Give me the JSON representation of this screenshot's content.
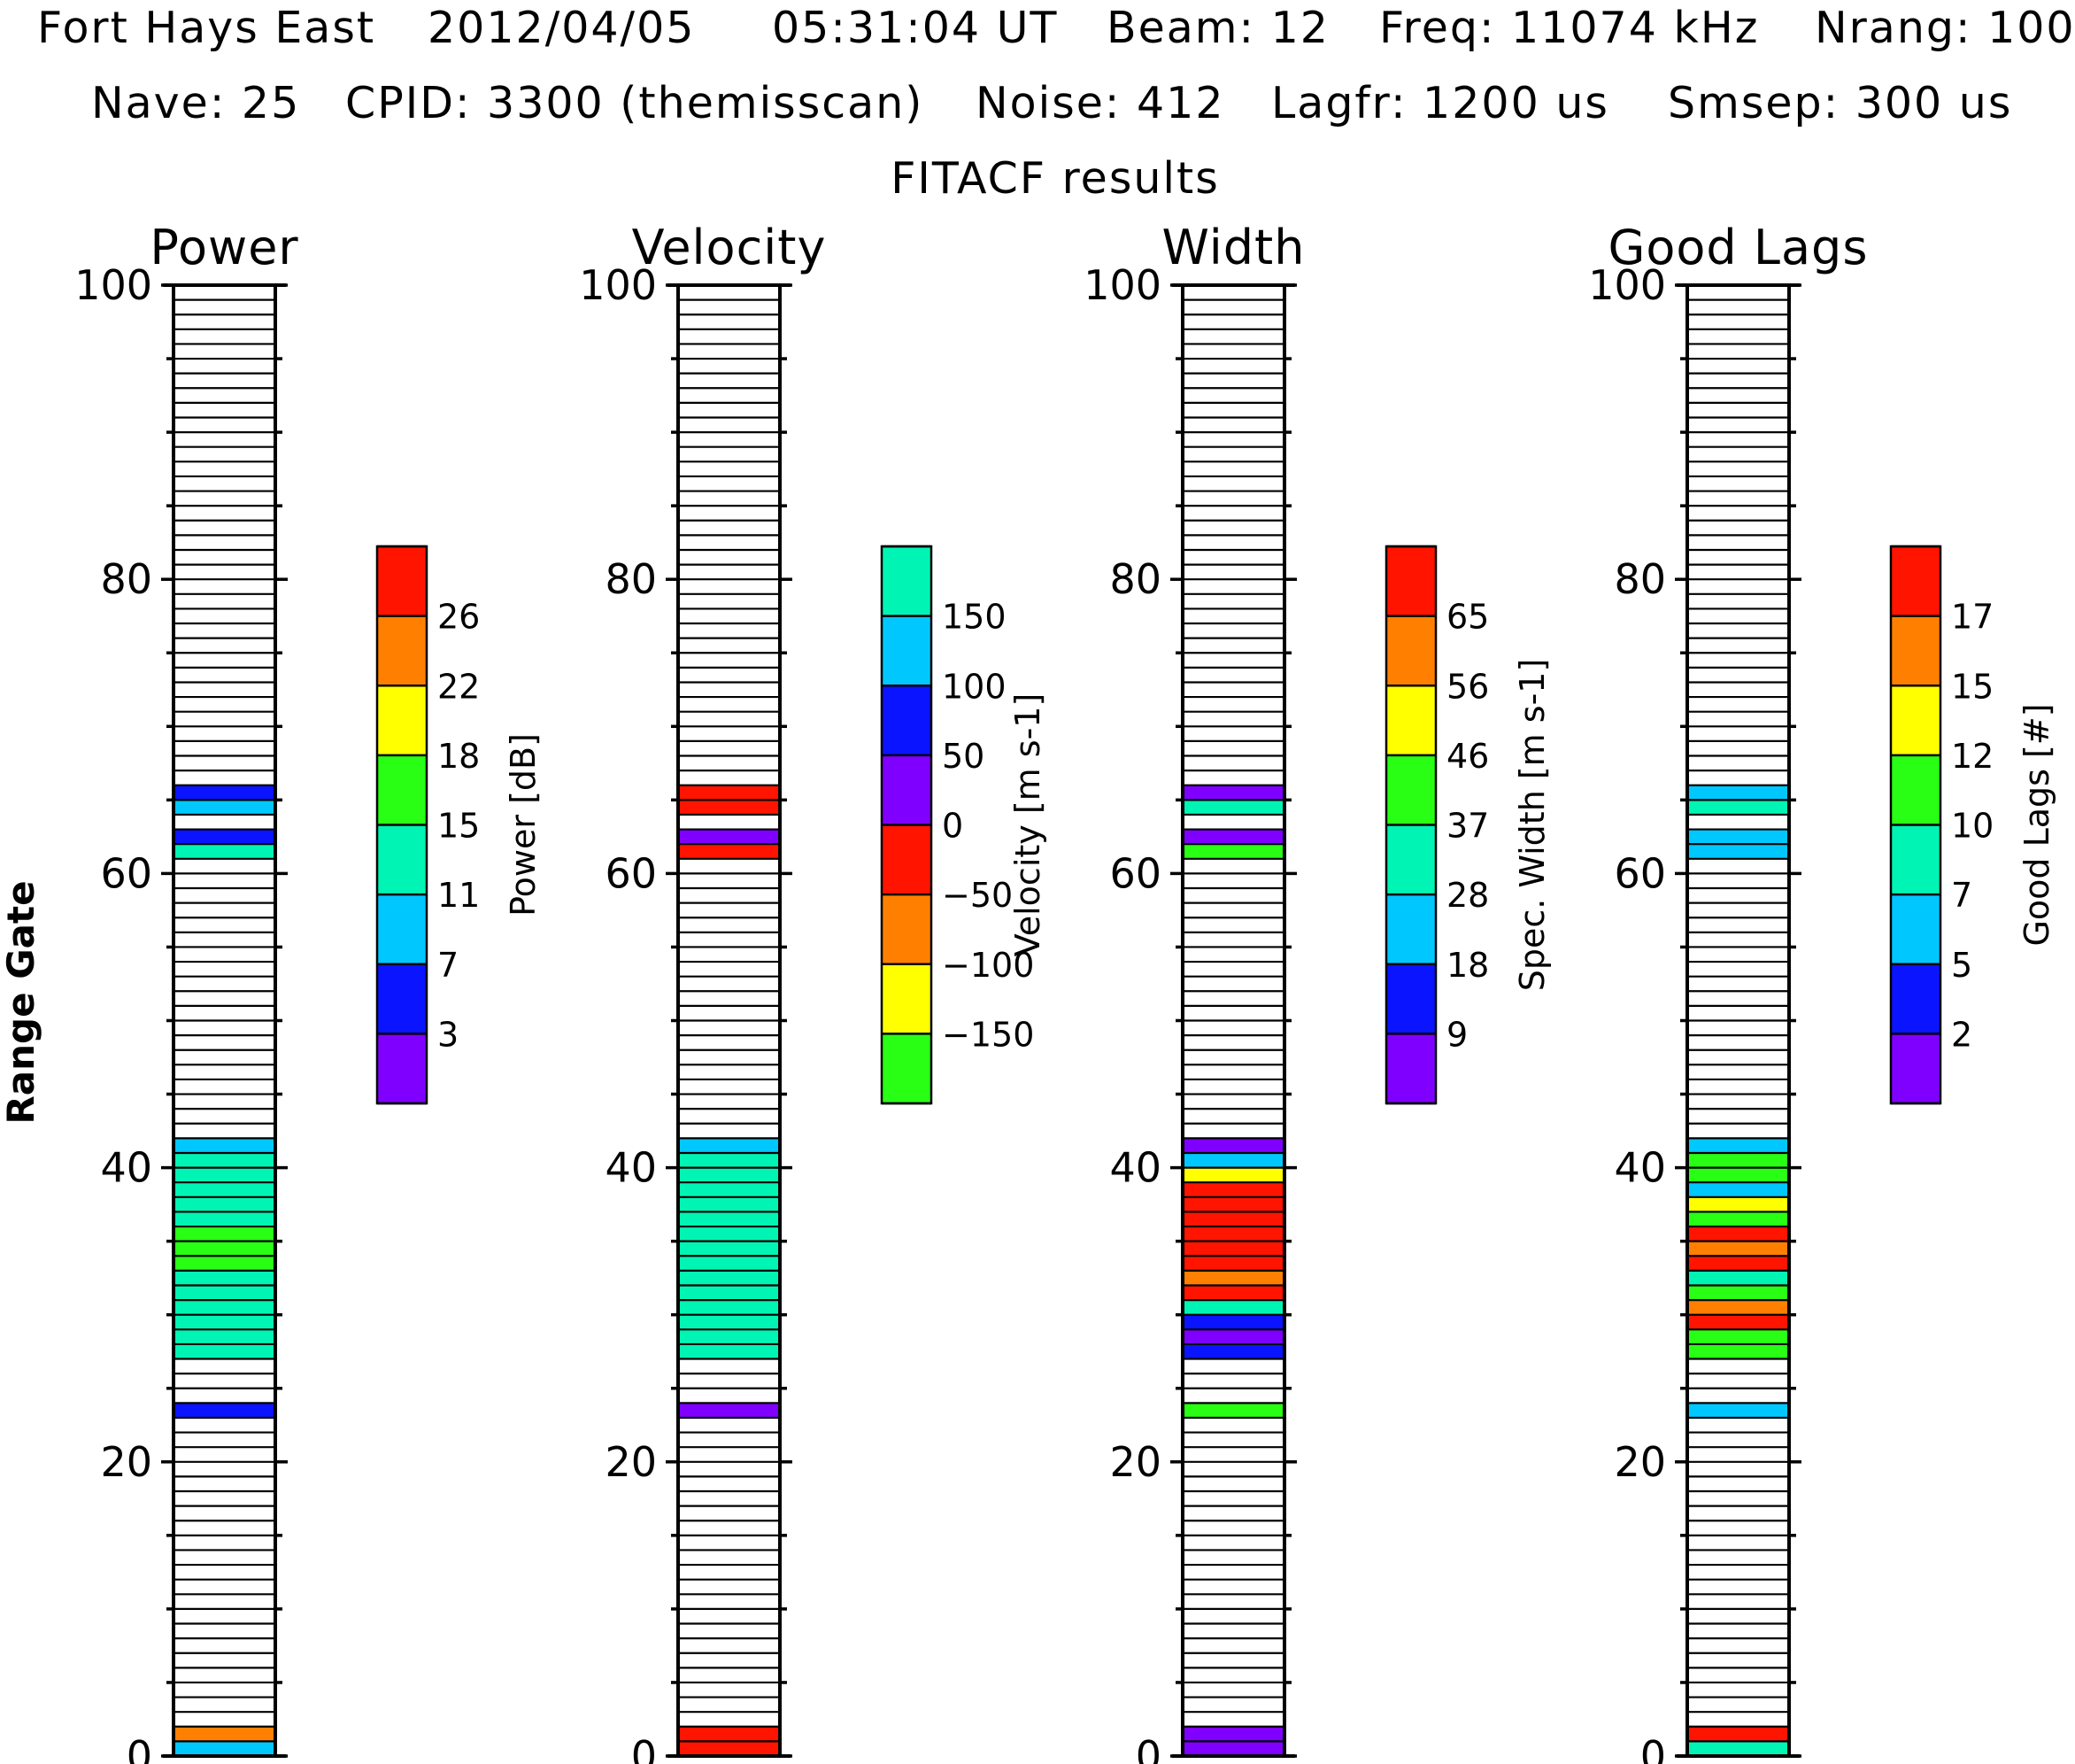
{
  "header": {
    "line1": [
      "Fort Hays East",
      "2012/04/05",
      "05:31:04 UT",
      "Beam: 12",
      "Freq: 11074 kHz",
      "Nrang: 100"
    ],
    "line2": [
      "Nave: 25",
      "CPID: 3300 (themisscan)",
      "Noise: 412",
      "Lagfr: 1200 us",
      "Smsep: 300 us"
    ],
    "line3": "FITACF results"
  },
  "y_axis_label": "Range Gate",
  "y_ticks": [
    "0",
    "20",
    "40",
    "60",
    "80",
    "100"
  ],
  "palette": {
    "purple": "#8000ff",
    "blue": "#0a14ff",
    "cyan": "#00c8ff",
    "aqua": "#00f5b4",
    "green": "#28ff14",
    "yellow": "#ffff00",
    "orange": "#ff8000",
    "red": "#ff1400"
  },
  "chart_data": {
    "type": "heatmap",
    "y_range": [
      0,
      100
    ],
    "panels": [
      {
        "title": "Power",
        "colorbar": {
          "label": "Power [dB]",
          "colors_bottom_to_top": [
            "#8000ff",
            "#0a14ff",
            "#00c8ff",
            "#00f5b4",
            "#28ff14",
            "#ffff00",
            "#ff8000",
            "#ff1400"
          ],
          "tick_labels_bottom_to_top": [
            "3",
            "7",
            "11",
            "15",
            "18",
            "22",
            "26"
          ]
        },
        "gates": [
          [
            0,
            "#00c8ff"
          ],
          [
            1,
            "#ff8000"
          ],
          [
            23,
            "#0a14ff"
          ],
          [
            27,
            "#00f5b4"
          ],
          [
            28,
            "#00f5b4"
          ],
          [
            29,
            "#00f5b4"
          ],
          [
            30,
            "#00f5b4"
          ],
          [
            31,
            "#00f5b4"
          ],
          [
            32,
            "#00f5b4"
          ],
          [
            33,
            "#28ff14"
          ],
          [
            34,
            "#28ff14"
          ],
          [
            35,
            "#28ff14"
          ],
          [
            36,
            "#00f5b4"
          ],
          [
            37,
            "#00f5b4"
          ],
          [
            38,
            "#00f5b4"
          ],
          [
            39,
            "#00f5b4"
          ],
          [
            40,
            "#00f5b4"
          ],
          [
            41,
            "#00c8ff"
          ],
          [
            61,
            "#00f5b4"
          ],
          [
            62,
            "#0a14ff"
          ],
          [
            64,
            "#00c8ff"
          ],
          [
            65,
            "#0a14ff"
          ]
        ]
      },
      {
        "title": "Velocity",
        "colorbar": {
          "label": "Velocity [m s-1]",
          "colors_bottom_to_top": [
            "#28ff14",
            "#ffff00",
            "#ff8000",
            "#ff1400",
            "#8000ff",
            "#0a14ff",
            "#00c8ff",
            "#00f5b4"
          ],
          "tick_labels_bottom_to_top": [
            "−150",
            "−100",
            "−50",
            "0",
            "50",
            "100",
            "150"
          ]
        },
        "gates": [
          [
            0,
            "#ff1400"
          ],
          [
            1,
            "#ff1400"
          ],
          [
            23,
            "#8000ff"
          ],
          [
            27,
            "#00f5b4"
          ],
          [
            28,
            "#00f5b4"
          ],
          [
            29,
            "#00f5b4"
          ],
          [
            30,
            "#00f5b4"
          ],
          [
            31,
            "#00f5b4"
          ],
          [
            32,
            "#00f5b4"
          ],
          [
            33,
            "#00f5b4"
          ],
          [
            34,
            "#00f5b4"
          ],
          [
            35,
            "#00f5b4"
          ],
          [
            36,
            "#00f5b4"
          ],
          [
            37,
            "#00f5b4"
          ],
          [
            38,
            "#00f5b4"
          ],
          [
            39,
            "#00f5b4"
          ],
          [
            40,
            "#00f5b4"
          ],
          [
            41,
            "#00c8ff"
          ],
          [
            61,
            "#ff1400"
          ],
          [
            62,
            "#8000ff"
          ],
          [
            64,
            "#ff1400"
          ],
          [
            65,
            "#ff1400"
          ]
        ]
      },
      {
        "title": "Width",
        "colorbar": {
          "label": "Spec. Width [m s-1]",
          "colors_bottom_to_top": [
            "#8000ff",
            "#0a14ff",
            "#00c8ff",
            "#00f5b4",
            "#28ff14",
            "#ffff00",
            "#ff8000",
            "#ff1400"
          ],
          "tick_labels_bottom_to_top": [
            "9",
            "18",
            "28",
            "37",
            "46",
            "56",
            "65"
          ]
        },
        "gates": [
          [
            0,
            "#8000ff"
          ],
          [
            1,
            "#8000ff"
          ],
          [
            23,
            "#28ff14"
          ],
          [
            27,
            "#0a14ff"
          ],
          [
            28,
            "#8000ff"
          ],
          [
            29,
            "#0a14ff"
          ],
          [
            30,
            "#00f5b4"
          ],
          [
            31,
            "#ff1400"
          ],
          [
            32,
            "#ff8000"
          ],
          [
            33,
            "#ff1400"
          ],
          [
            34,
            "#ff1400"
          ],
          [
            35,
            "#ff1400"
          ],
          [
            36,
            "#ff1400"
          ],
          [
            37,
            "#ff1400"
          ],
          [
            38,
            "#ff1400"
          ],
          [
            39,
            "#ffff00"
          ],
          [
            40,
            "#00c8ff"
          ],
          [
            41,
            "#8000ff"
          ],
          [
            61,
            "#28ff14"
          ],
          [
            62,
            "#8000ff"
          ],
          [
            64,
            "#00f5b4"
          ],
          [
            65,
            "#8000ff"
          ]
        ]
      },
      {
        "title": "Good Lags",
        "colorbar": {
          "label": "Good Lags [#]",
          "colors_bottom_to_top": [
            "#8000ff",
            "#0a14ff",
            "#00c8ff",
            "#00f5b4",
            "#28ff14",
            "#ffff00",
            "#ff8000",
            "#ff1400"
          ],
          "tick_labels_bottom_to_top": [
            "2",
            "5",
            "7",
            "10",
            "12",
            "15",
            "17"
          ]
        },
        "gates": [
          [
            0,
            "#00f5b4"
          ],
          [
            1,
            "#ff1400"
          ],
          [
            23,
            "#00c8ff"
          ],
          [
            27,
            "#28ff14"
          ],
          [
            28,
            "#28ff14"
          ],
          [
            29,
            "#ff1400"
          ],
          [
            30,
            "#ff8000"
          ],
          [
            31,
            "#28ff14"
          ],
          [
            32,
            "#00f5b4"
          ],
          [
            33,
            "#ff1400"
          ],
          [
            34,
            "#ff8000"
          ],
          [
            35,
            "#ff1400"
          ],
          [
            36,
            "#28ff14"
          ],
          [
            37,
            "#ffff00"
          ],
          [
            38,
            "#00c8ff"
          ],
          [
            39,
            "#28ff14"
          ],
          [
            40,
            "#28ff14"
          ],
          [
            41,
            "#00c8ff"
          ],
          [
            61,
            "#00c8ff"
          ],
          [
            62,
            "#00c8ff"
          ],
          [
            64,
            "#00f5b4"
          ],
          [
            65,
            "#00c8ff"
          ]
        ]
      }
    ]
  }
}
